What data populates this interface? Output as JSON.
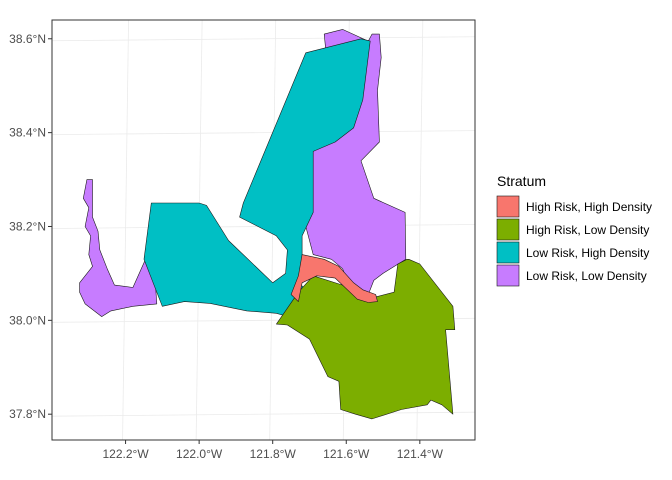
{
  "chart_data": {
    "type": "map",
    "legend": {
      "title": "Stratum",
      "placement": "right",
      "entries": [
        {
          "label": "High Risk, High Density",
          "color": "#F8766D"
        },
        {
          "label": "High Risk, Low Density",
          "color": "#7CAE00"
        },
        {
          "label": "Low Risk, High Density",
          "color": "#00BFC4"
        },
        {
          "label": "Low Risk, Low Density",
          "color": "#C77CFF"
        }
      ]
    },
    "x_axis": {
      "ticks": [
        {
          "value": -122.2,
          "label": "122.2°W"
        },
        {
          "value": -122.0,
          "label": "122.0°W"
        },
        {
          "value": -121.8,
          "label": "121.8°W"
        },
        {
          "value": -121.6,
          "label": "121.6°W"
        },
        {
          "value": -121.4,
          "label": "121.4°W"
        }
      ],
      "range": [
        -122.4,
        -121.25
      ]
    },
    "y_axis": {
      "ticks": [
        {
          "value": 37.8,
          "label": "37.8°N"
        },
        {
          "value": 38.0,
          "label": "38.0°N"
        },
        {
          "value": 38.2,
          "label": "38.2°N"
        },
        {
          "value": 38.4,
          "label": "38.4°N"
        },
        {
          "value": 38.6,
          "label": "38.6°N"
        }
      ],
      "range": [
        37.745,
        38.64
      ]
    },
    "grid": true,
    "regions": [
      {
        "stratum": "Low Risk, Low Density",
        "name": "west-lowrisk-lowdensity",
        "coords": [
          [
            -122.305,
            38.3
          ],
          [
            -122.29,
            38.3
          ],
          [
            -122.29,
            38.22
          ],
          [
            -122.275,
            38.19
          ],
          [
            -122.27,
            38.15
          ],
          [
            -122.25,
            38.11
          ],
          [
            -122.23,
            38.075
          ],
          [
            -122.18,
            38.07
          ],
          [
            -122.14,
            38.14
          ],
          [
            -122.12,
            38.09
          ],
          [
            -122.115,
            38.035
          ],
          [
            -122.18,
            38.03
          ],
          [
            -122.24,
            38.02
          ],
          [
            -122.265,
            38.008
          ],
          [
            -122.31,
            38.035
          ],
          [
            -122.325,
            38.06
          ],
          [
            -122.325,
            38.08
          ],
          [
            -122.29,
            38.115
          ],
          [
            -122.3,
            38.14
          ],
          [
            -122.295,
            38.18
          ],
          [
            -122.31,
            38.2
          ],
          [
            -122.3,
            38.24
          ],
          [
            -122.315,
            38.26
          ]
        ]
      },
      {
        "stratum": "Low Risk, Low Density",
        "name": "east-lowrisk-lowdensity",
        "coords": [
          [
            -121.53,
            38.61
          ],
          [
            -121.51,
            38.61
          ],
          [
            -121.505,
            38.56
          ],
          [
            -121.515,
            38.49
          ],
          [
            -121.51,
            38.38
          ],
          [
            -121.56,
            38.34
          ],
          [
            -121.525,
            38.26
          ],
          [
            -121.44,
            38.23
          ],
          [
            -121.438,
            38.13
          ],
          [
            -121.5,
            38.1
          ],
          [
            -121.525,
            38.085
          ],
          [
            -121.545,
            38.045
          ],
          [
            -121.58,
            38.05
          ],
          [
            -121.61,
            38.11
          ],
          [
            -121.64,
            38.13
          ],
          [
            -121.69,
            38.14
          ],
          [
            -121.72,
            38.23
          ],
          [
            -121.69,
            38.33
          ],
          [
            -121.69,
            38.46
          ],
          [
            -121.645,
            38.49
          ],
          [
            -121.66,
            38.61
          ],
          [
            -121.61,
            38.62
          ],
          [
            -121.54,
            38.595
          ]
        ]
      },
      {
        "stratum": "Low Risk, High Density",
        "name": "lowrisk-highdensity",
        "coords": [
          [
            -121.71,
            38.57
          ],
          [
            -121.56,
            38.6
          ],
          [
            -121.535,
            38.595
          ],
          [
            -121.555,
            38.47
          ],
          [
            -121.58,
            38.41
          ],
          [
            -121.63,
            38.38
          ],
          [
            -121.69,
            38.36
          ],
          [
            -121.69,
            38.26
          ],
          [
            -121.69,
            38.23
          ],
          [
            -121.72,
            38.18
          ],
          [
            -121.72,
            38.125
          ],
          [
            -121.73,
            38.08
          ],
          [
            -121.7,
            38.06
          ],
          [
            -121.69,
            38.0
          ],
          [
            -121.74,
            38.004
          ],
          [
            -121.79,
            38.015
          ],
          [
            -121.87,
            38.02
          ],
          [
            -121.97,
            38.036
          ],
          [
            -122.04,
            38.04
          ],
          [
            -122.1,
            38.03
          ],
          [
            -122.15,
            38.13
          ],
          [
            -122.13,
            38.25
          ],
          [
            -122.06,
            38.25
          ],
          [
            -122.0,
            38.25
          ],
          [
            -121.98,
            38.245
          ],
          [
            -121.92,
            38.17
          ],
          [
            -121.8,
            38.08
          ],
          [
            -121.765,
            38.1
          ],
          [
            -121.76,
            38.15
          ],
          [
            -121.79,
            38.18
          ],
          [
            -121.89,
            38.22
          ],
          [
            -121.88,
            38.25
          ]
        ]
      },
      {
        "stratum": "High Risk, Low Density",
        "name": "highrisk-lowdensity",
        "coords": [
          [
            -121.79,
            37.992
          ],
          [
            -121.73,
            38.06
          ],
          [
            -121.69,
            38.095
          ],
          [
            -121.61,
            38.075
          ],
          [
            -121.58,
            38.06
          ],
          [
            -121.565,
            38.05
          ],
          [
            -121.54,
            38.04
          ],
          [
            -121.52,
            38.05
          ],
          [
            -121.47,
            38.06
          ],
          [
            -121.46,
            38.12
          ],
          [
            -121.435,
            38.13
          ],
          [
            -121.43,
            38.13
          ],
          [
            -121.4,
            38.12
          ],
          [
            -121.31,
            38.03
          ],
          [
            -121.305,
            37.98
          ],
          [
            -121.33,
            37.98
          ],
          [
            -121.31,
            37.8
          ],
          [
            -121.34,
            37.82
          ],
          [
            -121.37,
            37.83
          ],
          [
            -121.38,
            37.82
          ],
          [
            -121.45,
            37.81
          ],
          [
            -121.53,
            37.79
          ],
          [
            -121.575,
            37.8
          ],
          [
            -121.615,
            37.81
          ],
          [
            -121.62,
            37.87
          ],
          [
            -121.65,
            37.88
          ],
          [
            -121.7,
            37.96
          ],
          [
            -121.76,
            37.99
          ]
        ]
      },
      {
        "stratum": "High Risk, High Density",
        "name": "highrisk-highdensity",
        "coords": [
          [
            -121.75,
            38.055
          ],
          [
            -121.73,
            38.095
          ],
          [
            -121.72,
            38.14
          ],
          [
            -121.66,
            38.13
          ],
          [
            -121.62,
            38.115
          ],
          [
            -121.58,
            38.08
          ],
          [
            -121.555,
            38.065
          ],
          [
            -121.52,
            38.055
          ],
          [
            -121.515,
            38.04
          ],
          [
            -121.54,
            38.038
          ],
          [
            -121.57,
            38.045
          ],
          [
            -121.63,
            38.09
          ],
          [
            -121.68,
            38.095
          ],
          [
            -121.72,
            38.08
          ],
          [
            -121.73,
            38.04
          ]
        ]
      }
    ]
  }
}
